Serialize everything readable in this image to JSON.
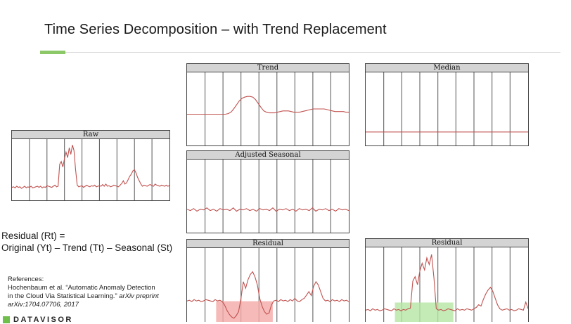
{
  "slide": {
    "title": "Time Series Decomposition – with Trend Replacement"
  },
  "formula": {
    "line1": "Residual (Rt) =",
    "line2": "Original (Yt)  – Trend (Tt) – Seasonal (St)"
  },
  "references": {
    "heading": "References:",
    "line1": "Hochenbaum et al. “Automatic Anomaly Detection",
    "line2_plain": "in the Cloud Via Statistical Learning.” ",
    "line2_italic": "arXiv preprint",
    "line3": "arXiv:1704.07706, 2017"
  },
  "logo": {
    "text": "DATAVISOR"
  },
  "colors": {
    "line": "#c0524f",
    "grid": "#555555",
    "header_bg": "#d4d4d4",
    "accent_green": "#8cc868",
    "highlight_red": "#f4a9a6",
    "highlight_green": "#b5e6a3"
  },
  "panels": [
    {
      "id": "raw",
      "title": "Raw",
      "series": [
        0.18,
        0.19,
        0.17,
        0.2,
        0.18,
        0.19,
        0.16,
        0.18,
        0.2,
        0.17,
        0.19,
        0.18,
        0.2,
        0.17,
        0.18,
        0.19,
        0.2,
        0.18,
        0.2,
        0.17,
        0.19,
        0.18,
        0.21,
        0.2,
        0.19,
        0.18,
        0.2,
        0.22,
        0.19,
        0.2,
        0.6,
        0.65,
        0.55,
        0.7,
        0.82,
        0.72,
        0.9,
        0.78,
        0.95,
        0.85,
        0.5,
        0.22,
        0.19,
        0.2,
        0.21,
        0.18,
        0.2,
        0.22,
        0.2,
        0.19,
        0.21,
        0.2,
        0.22,
        0.19,
        0.2,
        0.21,
        0.2,
        0.23,
        0.2,
        0.24,
        0.2,
        0.21,
        0.19,
        0.2,
        0.22,
        0.21,
        0.2,
        0.19,
        0.22,
        0.25,
        0.3,
        0.24,
        0.26,
        0.32,
        0.38,
        0.42,
        0.48,
        0.5,
        0.44,
        0.36,
        0.3,
        0.24,
        0.2,
        0.22,
        0.21,
        0.2,
        0.22,
        0.23,
        0.21,
        0.2,
        0.24,
        0.22,
        0.21,
        0.2,
        0.22,
        0.21,
        0.2,
        0.22,
        0.2,
        0.21
      ]
    },
    {
      "id": "trend",
      "title": "Trend",
      "series": [
        0.42,
        0.42,
        0.42,
        0.42,
        0.42,
        0.42,
        0.42,
        0.42,
        0.42,
        0.42,
        0.42,
        0.42,
        0.42,
        0.42,
        0.42,
        0.43,
        0.45,
        0.5,
        0.56,
        0.62,
        0.66,
        0.68,
        0.69,
        0.69,
        0.68,
        0.64,
        0.58,
        0.52,
        0.47,
        0.45,
        0.44,
        0.44,
        0.44,
        0.45,
        0.46,
        0.47,
        0.47,
        0.47,
        0.46,
        0.45,
        0.45,
        0.45,
        0.46,
        0.47,
        0.48,
        0.49,
        0.5,
        0.5,
        0.5,
        0.5,
        0.5,
        0.49,
        0.48,
        0.47,
        0.46,
        0.46,
        0.46,
        0.46,
        0.45,
        0.45
      ]
    },
    {
      "id": "median",
      "title": "Median",
      "series": [
        0.15,
        0.15,
        0.15,
        0.15,
        0.15,
        0.15,
        0.15,
        0.15,
        0.15,
        0.15,
        0.15,
        0.15,
        0.15,
        0.15,
        0.15,
        0.15,
        0.15,
        0.15,
        0.15,
        0.15,
        0.15,
        0.15,
        0.15,
        0.15,
        0.15,
        0.15,
        0.15,
        0.15,
        0.15,
        0.15
      ]
    },
    {
      "id": "adjusted-seasonal",
      "title": "Adjusted Seasonal",
      "series": [
        0.3,
        0.28,
        0.31,
        0.27,
        0.3,
        0.29,
        0.32,
        0.28,
        0.3,
        0.27,
        0.31,
        0.29,
        0.3,
        0.28,
        0.32,
        0.27,
        0.3,
        0.29,
        0.31,
        0.28,
        0.3,
        0.27,
        0.31,
        0.29,
        0.3,
        0.28,
        0.32,
        0.27,
        0.3,
        0.29,
        0.31,
        0.28,
        0.3,
        0.27,
        0.31,
        0.29,
        0.3,
        0.28,
        0.32,
        0.27,
        0.3,
        0.29,
        0.31,
        0.28,
        0.3,
        0.27,
        0.31,
        0.29,
        0.3,
        0.28
      ]
    },
    {
      "id": "residual-trend",
      "title": "Residual",
      "series": [
        0.26,
        0.27,
        0.25,
        0.28,
        0.26,
        0.27,
        0.25,
        0.26,
        0.28,
        0.27,
        0.26,
        0.25,
        0.28,
        0.26,
        0.27,
        0.25,
        0.2,
        0.12,
        0.06,
        0.02,
        0.0,
        0.04,
        0.1,
        0.3,
        0.55,
        0.45,
        0.58,
        0.66,
        0.7,
        0.62,
        0.5,
        0.3,
        0.18,
        0.1,
        0.06,
        0.08,
        0.2,
        0.26,
        0.27,
        0.25,
        0.28,
        0.26,
        0.27,
        0.25,
        0.28,
        0.26,
        0.3,
        0.26,
        0.25,
        0.28,
        0.3,
        0.35,
        0.4,
        0.34,
        0.48,
        0.55,
        0.5,
        0.4,
        0.3,
        0.26,
        0.27,
        0.25,
        0.28,
        0.26,
        0.27,
        0.25,
        0.28,
        0.26,
        0.27,
        0.25
      ]
    },
    {
      "id": "residual-median",
      "title": "Residual",
      "series": [
        0.12,
        0.13,
        0.11,
        0.14,
        0.12,
        0.13,
        0.11,
        0.12,
        0.14,
        0.13,
        0.12,
        0.11,
        0.14,
        0.12,
        0.13,
        0.11,
        0.13,
        0.12,
        0.14,
        0.15,
        0.55,
        0.62,
        0.5,
        0.7,
        0.82,
        0.72,
        0.9,
        0.8,
        0.95,
        0.6,
        0.14,
        0.12,
        0.13,
        0.11,
        0.12,
        0.14,
        0.13,
        0.12,
        0.11,
        0.14,
        0.12,
        0.13,
        0.12,
        0.14,
        0.13,
        0.12,
        0.14,
        0.16,
        0.2,
        0.18,
        0.28,
        0.36,
        0.42,
        0.46,
        0.4,
        0.3,
        0.2,
        0.14,
        0.12,
        0.13,
        0.14,
        0.12,
        0.13,
        0.11,
        0.12,
        0.14,
        0.13,
        0.12,
        0.24,
        0.14
      ]
    }
  ]
}
